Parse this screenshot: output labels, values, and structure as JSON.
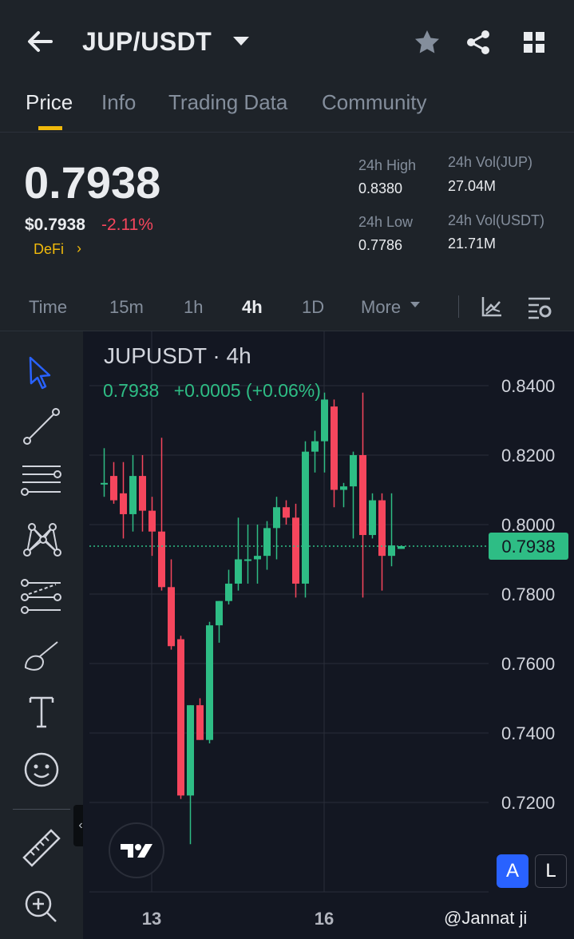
{
  "header": {
    "pair": "JUP/USDT",
    "icons": [
      "back-arrow-icon",
      "dropdown-caret-icon",
      "star-icon",
      "share-icon",
      "grid-icon"
    ]
  },
  "tabs": [
    {
      "label": "Price",
      "active": true
    },
    {
      "label": "Info",
      "active": false
    },
    {
      "label": "Trading Data",
      "active": false
    },
    {
      "label": "Community",
      "active": false
    }
  ],
  "ticker": {
    "last_price": "0.7938",
    "usd_price": "$0.7938",
    "change_pct": "-2.11%",
    "tag": "DeFi",
    "tag_chevron": "›",
    "high_label": "24h High",
    "high_value": "0.8380",
    "low_label": "24h Low",
    "low_value": "0.7786",
    "vol_jup_label": "24h Vol(JUP)",
    "vol_jup_value": "27.04M",
    "vol_usdt_label": "24h Vol(USDT)",
    "vol_usdt_value": "21.71M",
    "up_color": "#2ebd85",
    "down_color": "#f6465d",
    "accent_color": "#f0b90b"
  },
  "intervals": {
    "items": [
      {
        "label": "Time",
        "active": false
      },
      {
        "label": "15m",
        "active": false
      },
      {
        "label": "1h",
        "active": false
      },
      {
        "label": "4h",
        "active": true
      },
      {
        "label": "1D",
        "active": false
      },
      {
        "label": "More",
        "active": false
      }
    ],
    "icons": [
      "indicator-icon",
      "chart-settings-icon"
    ]
  },
  "tools": [
    "cursor-icon",
    "trend-line-icon",
    "horizontal-lines-icon",
    "pattern-icon",
    "forecast-icon",
    "brush-icon",
    "text-icon",
    "emoji-icon",
    "ruler-icon",
    "zoom-icon"
  ],
  "collapse_label": "‹",
  "chart": {
    "title": "JUPUSDT · 4h",
    "ohlc_price": "0.7938",
    "ohlc_change": "+0.0005 (+0.06%)",
    "current_price_label": "0.7938",
    "logo_text": "TV",
    "btn_auto": "A",
    "btn_log": "L",
    "watermark": "@Jannat  ji"
  },
  "chart_data": {
    "type": "candlestick",
    "symbol": "JUPUSDT",
    "interval": "4h",
    "y_ticks": [
      "0.8400",
      "0.8200",
      "0.8000",
      "0.7800",
      "0.7600",
      "0.7400",
      "0.7200"
    ],
    "ylim": [
      0.706,
      0.846
    ],
    "x_ticks": [
      {
        "label": "13",
        "index": 5
      },
      {
        "label": "16",
        "index": 23
      }
    ],
    "current_price": 0.7938,
    "candles": [
      {
        "o": 0.812,
        "h": 0.822,
        "l": 0.808,
        "c": 0.812
      },
      {
        "o": 0.814,
        "h": 0.818,
        "l": 0.806,
        "c": 0.807
      },
      {
        "o": 0.809,
        "h": 0.818,
        "l": 0.796,
        "c": 0.803
      },
      {
        "o": 0.803,
        "h": 0.82,
        "l": 0.798,
        "c": 0.814
      },
      {
        "o": 0.814,
        "h": 0.82,
        "l": 0.798,
        "c": 0.804
      },
      {
        "o": 0.804,
        "h": 0.808,
        "l": 0.791,
        "c": 0.798
      },
      {
        "o": 0.798,
        "h": 0.825,
        "l": 0.781,
        "c": 0.782
      },
      {
        "o": 0.782,
        "h": 0.79,
        "l": 0.764,
        "c": 0.765
      },
      {
        "o": 0.767,
        "h": 0.768,
        "l": 0.721,
        "c": 0.722
      },
      {
        "o": 0.722,
        "h": 0.748,
        "l": 0.708,
        "c": 0.748
      },
      {
        "o": 0.748,
        "h": 0.75,
        "l": 0.738,
        "c": 0.738
      },
      {
        "o": 0.738,
        "h": 0.772,
        "l": 0.737,
        "c": 0.771
      },
      {
        "o": 0.771,
        "h": 0.778,
        "l": 0.766,
        "c": 0.778
      },
      {
        "o": 0.778,
        "h": 0.787,
        "l": 0.777,
        "c": 0.783
      },
      {
        "o": 0.783,
        "h": 0.802,
        "l": 0.781,
        "c": 0.79
      },
      {
        "o": 0.79,
        "h": 0.8,
        "l": 0.783,
        "c": 0.79
      },
      {
        "o": 0.79,
        "h": 0.8,
        "l": 0.783,
        "c": 0.791
      },
      {
        "o": 0.791,
        "h": 0.801,
        "l": 0.787,
        "c": 0.799
      },
      {
        "o": 0.799,
        "h": 0.808,
        "l": 0.79,
        "c": 0.805
      },
      {
        "o": 0.805,
        "h": 0.807,
        "l": 0.8,
        "c": 0.802
      },
      {
        "o": 0.802,
        "h": 0.806,
        "l": 0.779,
        "c": 0.783
      },
      {
        "o": 0.783,
        "h": 0.824,
        "l": 0.779,
        "c": 0.821
      },
      {
        "o": 0.821,
        "h": 0.827,
        "l": 0.815,
        "c": 0.824
      },
      {
        "o": 0.824,
        "h": 0.838,
        "l": 0.815,
        "c": 0.836
      },
      {
        "o": 0.834,
        "h": 0.836,
        "l": 0.805,
        "c": 0.81
      },
      {
        "o": 0.81,
        "h": 0.812,
        "l": 0.805,
        "c": 0.811
      },
      {
        "o": 0.811,
        "h": 0.821,
        "l": 0.796,
        "c": 0.82
      },
      {
        "o": 0.82,
        "h": 0.838,
        "l": 0.779,
        "c": 0.797
      },
      {
        "o": 0.797,
        "h": 0.809,
        "l": 0.796,
        "c": 0.807
      },
      {
        "o": 0.807,
        "h": 0.809,
        "l": 0.781,
        "c": 0.791
      },
      {
        "o": 0.791,
        "h": 0.809,
        "l": 0.788,
        "c": 0.794
      },
      {
        "o": 0.793,
        "h": 0.794,
        "l": 0.793,
        "c": 0.7938
      }
    ]
  }
}
